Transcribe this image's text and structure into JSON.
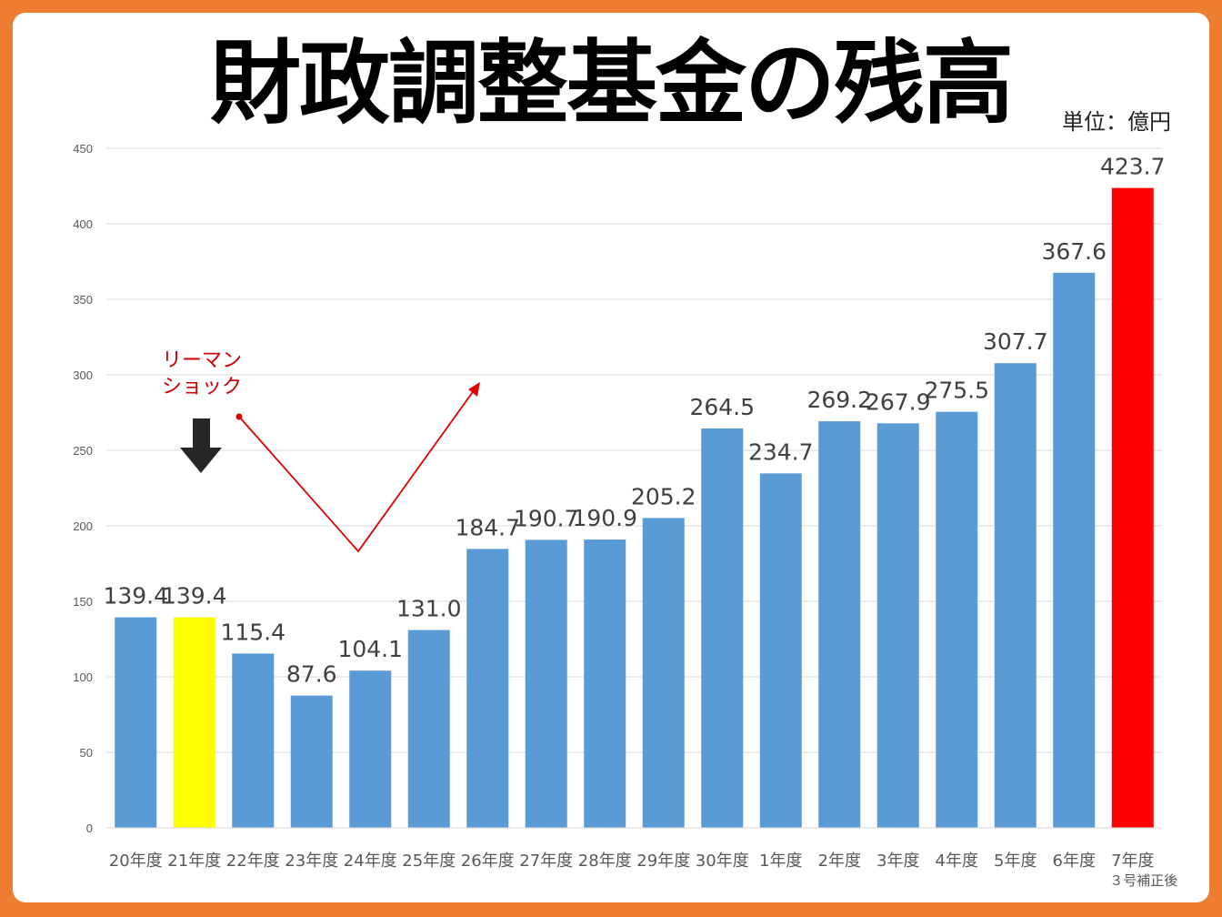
{
  "title": "財政調整基金の残高",
  "unit": "単位：億円",
  "chart_data": {
    "type": "bar",
    "title": "財政調整基金の残高",
    "ylabel": "",
    "xlabel": "",
    "ylim": [
      0,
      450
    ],
    "yticks": [
      0,
      50,
      100,
      150,
      200,
      250,
      300,
      350,
      400,
      450
    ],
    "grid": true,
    "categories": [
      "20年度",
      "21年度",
      "22年度",
      "23年度",
      "24年度",
      "25年度",
      "26年度",
      "27年度",
      "28年度",
      "29年度",
      "30年度",
      "1年度",
      "2年度",
      "3年度",
      "4年度",
      "5年度",
      "6年度",
      "7年度"
    ],
    "category_sublabels": {
      "17": "３号補正後"
    },
    "values": [
      139.4,
      139.4,
      115.4,
      87.6,
      104.1,
      131.0,
      184.7,
      190.7,
      190.9,
      205.2,
      264.5,
      234.7,
      269.2,
      267.9,
      275.5,
      307.7,
      367.6,
      423.7
    ],
    "data_labels": [
      "139.4",
      "139.4",
      "115.4",
      "87.6",
      "104.1",
      "131.0",
      "184.7",
      "190.7",
      "190.9",
      "205.2",
      "264.5",
      "234.7",
      "269.2",
      "267.9",
      "275.5",
      "307.7",
      "367.6",
      "423.7"
    ],
    "colors": {
      "default": "#5B9BD5",
      "highlight_21": "#FFFF00",
      "highlight_7": "#FF0000"
    },
    "annotations": [
      {
        "text": "リーマン\nショック",
        "color": "#CC0000",
        "line1": "リーマン",
        "line2": "ショック"
      }
    ]
  }
}
